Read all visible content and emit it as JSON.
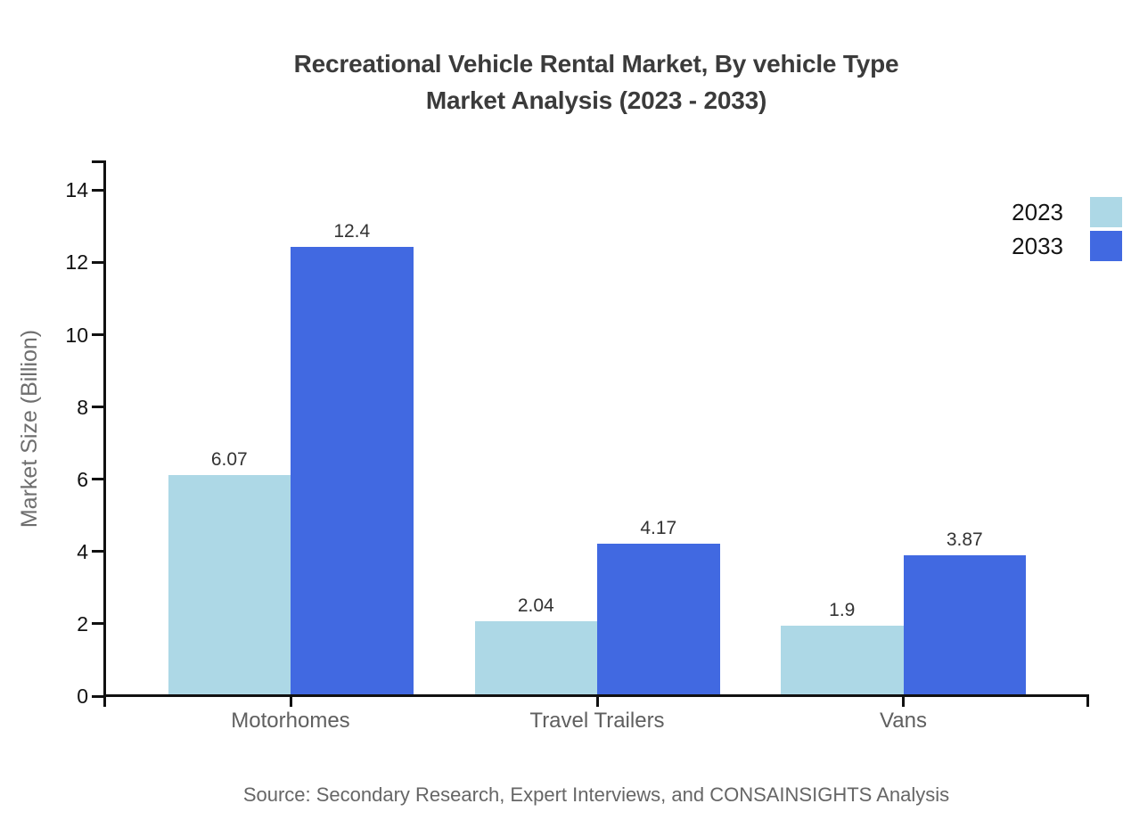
{
  "title": {
    "line1": "Recreational Vehicle Rental Market, By vehicle Type",
    "line2": "Market Analysis (2023 - 2033)"
  },
  "source": "Source: Secondary Research, Expert Interviews, and CONSAINSIGHTS Analysis",
  "chart_data": {
    "type": "bar",
    "title": "Recreational Vehicle Rental Market, By vehicle Type Market Analysis (2023 - 2033)",
    "categories": [
      "Motorhomes",
      "Travel Trailers",
      "Vans"
    ],
    "series": [
      {
        "name": "2023",
        "color": "#ADD8E6",
        "values": [
          6.07,
          2.04,
          1.9
        ]
      },
      {
        "name": "2033",
        "color": "#4169E1",
        "values": [
          12.4,
          4.17,
          3.87
        ]
      }
    ],
    "xlabel": "",
    "ylabel": "Market Size (Billion)",
    "yticks": [
      0,
      2,
      4,
      6,
      8,
      10,
      12,
      14
    ],
    "ylim": [
      0,
      14.8
    ],
    "grid": false,
    "legend_position": "top-right",
    "value_labels_shown": true
  },
  "colors": {
    "series_2023": "#ADD8E6",
    "series_2033": "#4169E1",
    "title_text": "#3b3b3b",
    "axis": "#111111",
    "tick_label": "#111111",
    "category_label": "#5f5f5f",
    "axis_title_text": "#6e6e6e",
    "value_label": "#333333",
    "source_text": "#666666",
    "background": "#ffffff"
  }
}
